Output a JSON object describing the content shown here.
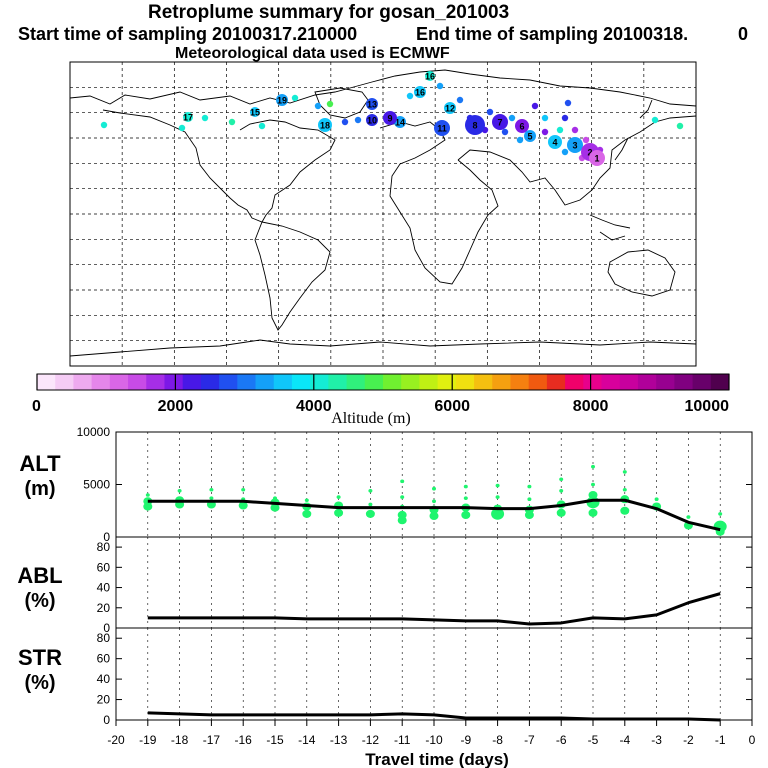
{
  "header": {
    "title": "Retroplume summary for gosan_201003",
    "start": "Start time of sampling 20100317.210000",
    "end": "End time of sampling 20100318.",
    "end_suffix": "0",
    "met": "Meteorological data used is ECMWF"
  },
  "colorbar": {
    "label": "Altitude (m)",
    "ticks": [
      "0",
      "2000",
      "4000",
      "6000",
      "8000",
      "10000"
    ],
    "colors": [
      "#fbe6fb",
      "#f5ccf5",
      "#eeaaef",
      "#e586ea",
      "#d966e6",
      "#c84be6",
      "#a62ee6",
      "#7d18e6",
      "#4818e6",
      "#2a2ae6",
      "#2050f0",
      "#1a78f5",
      "#14a0f8",
      "#10c6fa",
      "#0ae6f8",
      "#14ecd4",
      "#20f0a8",
      "#30f07c",
      "#48f050",
      "#70f030",
      "#98f020",
      "#c0f014",
      "#e0f010",
      "#f0e010",
      "#f5c010",
      "#f5a010",
      "#f58010",
      "#f05a10",
      "#e82c20",
      "#f0006a",
      "#e8008c",
      "#d8009c",
      "#c8009e",
      "#b0009a",
      "#980090",
      "#800080",
      "#68006a",
      "#50004e"
    ]
  },
  "map_markers": {
    "labels": [
      "16",
      "16",
      "19",
      "13",
      "18",
      "10",
      "14",
      "12",
      "11",
      "8",
      "7",
      "6",
      "5",
      "4",
      "3",
      "2",
      "1",
      "17",
      "15",
      "9"
    ]
  },
  "chart_data": {
    "type": "line",
    "x": [
      -19,
      -18,
      -17,
      -16,
      -15,
      -14,
      -13,
      -12,
      -11,
      -10,
      -9,
      -8,
      -7,
      -6,
      -5,
      -4,
      -3,
      -2,
      -1
    ],
    "xlabel": "Travel time (days)",
    "xlim": [
      -20,
      0
    ],
    "xticks": [
      "-20",
      "-19",
      "-18",
      "-17",
      "-16",
      "-15",
      "-14",
      "-13",
      "-12",
      "-11",
      "-10",
      "-9",
      "-8",
      "-7",
      "-6",
      "-5",
      "-4",
      "-3",
      "-2",
      "-1",
      "0"
    ],
    "panels": [
      {
        "name": "ALT",
        "unit": "(m)",
        "ylim": [
          0,
          10000
        ],
        "yticks": [
          "0",
          "5000",
          "10000"
        ],
        "values": [
          3400,
          3400,
          3400,
          3400,
          3200,
          3000,
          2800,
          2800,
          2800,
          2800,
          2800,
          2700,
          2700,
          3000,
          3500,
          3500,
          2700,
          1400,
          700
        ],
        "clusters": [
          [
            [
              4000,
              1
            ],
            [
              3400,
              2
            ],
            [
              2900,
              2
            ]
          ],
          [
            [
              4400,
              1
            ],
            [
              3500,
              2
            ],
            [
              3100,
              2
            ]
          ],
          [
            [
              4500,
              1
            ],
            [
              3700,
              1
            ],
            [
              3100,
              2
            ]
          ],
          [
            [
              4500,
              1
            ],
            [
              3600,
              1
            ],
            [
              3000,
              2
            ]
          ],
          [
            [
              3700,
              1
            ],
            [
              3300,
              2
            ],
            [
              2800,
              2
            ]
          ],
          [
            [
              3500,
              1
            ],
            [
              2900,
              2
            ],
            [
              2200,
              2
            ]
          ],
          [
            [
              3800,
              1
            ],
            [
              3000,
              2
            ],
            [
              2300,
              2
            ]
          ],
          [
            [
              4400,
              1
            ],
            [
              3100,
              1
            ],
            [
              2200,
              2
            ]
          ],
          [
            [
              5300,
              1
            ],
            [
              3800,
              1
            ],
            [
              2900,
              1
            ],
            [
              2100,
              2
            ],
            [
              1600,
              2
            ]
          ],
          [
            [
              4600,
              1
            ],
            [
              3400,
              1
            ],
            [
              2600,
              2
            ],
            [
              2000,
              2
            ]
          ],
          [
            [
              4800,
              1
            ],
            [
              3700,
              1
            ],
            [
              2800,
              2
            ],
            [
              2100,
              2
            ]
          ],
          [
            [
              4900,
              1
            ],
            [
              3800,
              1
            ],
            [
              2700,
              2
            ],
            [
              2200,
              3
            ]
          ],
          [
            [
              4800,
              1
            ],
            [
              3600,
              1
            ],
            [
              2600,
              2
            ],
            [
              2100,
              2
            ]
          ],
          [
            [
              5500,
              1
            ],
            [
              4400,
              1
            ],
            [
              3100,
              2
            ],
            [
              2300,
              2
            ]
          ],
          [
            [
              6700,
              1
            ],
            [
              5000,
              1
            ],
            [
              4000,
              2
            ],
            [
              3300,
              3
            ],
            [
              2300,
              2
            ]
          ],
          [
            [
              6200,
              1
            ],
            [
              4500,
              1
            ],
            [
              3600,
              2
            ],
            [
              2500,
              2
            ]
          ],
          [
            [
              3600,
              1
            ],
            [
              2900,
              2
            ]
          ],
          [
            [
              1900,
              1
            ],
            [
              1100,
              2
            ]
          ],
          [
            [
              2200,
              1
            ],
            [
              1000,
              3
            ],
            [
              500,
              2
            ]
          ]
        ]
      },
      {
        "name": "ABL",
        "unit": "(%)",
        "ylim": [
          0,
          90
        ],
        "yticks": [
          "0",
          "20",
          "40",
          "60",
          "80"
        ],
        "values": [
          10,
          10,
          10,
          10,
          10,
          9,
          9,
          9,
          9,
          8,
          7,
          7,
          4,
          5,
          10,
          9,
          13,
          25,
          34
        ]
      },
      {
        "name": "STR",
        "unit": "(%)",
        "ylim": [
          0,
          90
        ],
        "yticks": [
          "0",
          "20",
          "40",
          "60",
          "80"
        ],
        "values": [
          7,
          6,
          5,
          5,
          5,
          5,
          5,
          5,
          6,
          5,
          2,
          2,
          2,
          2,
          1,
          1,
          1,
          1,
          0
        ]
      }
    ],
    "line_color": "#000000",
    "marker_color": "#1ef56e"
  }
}
